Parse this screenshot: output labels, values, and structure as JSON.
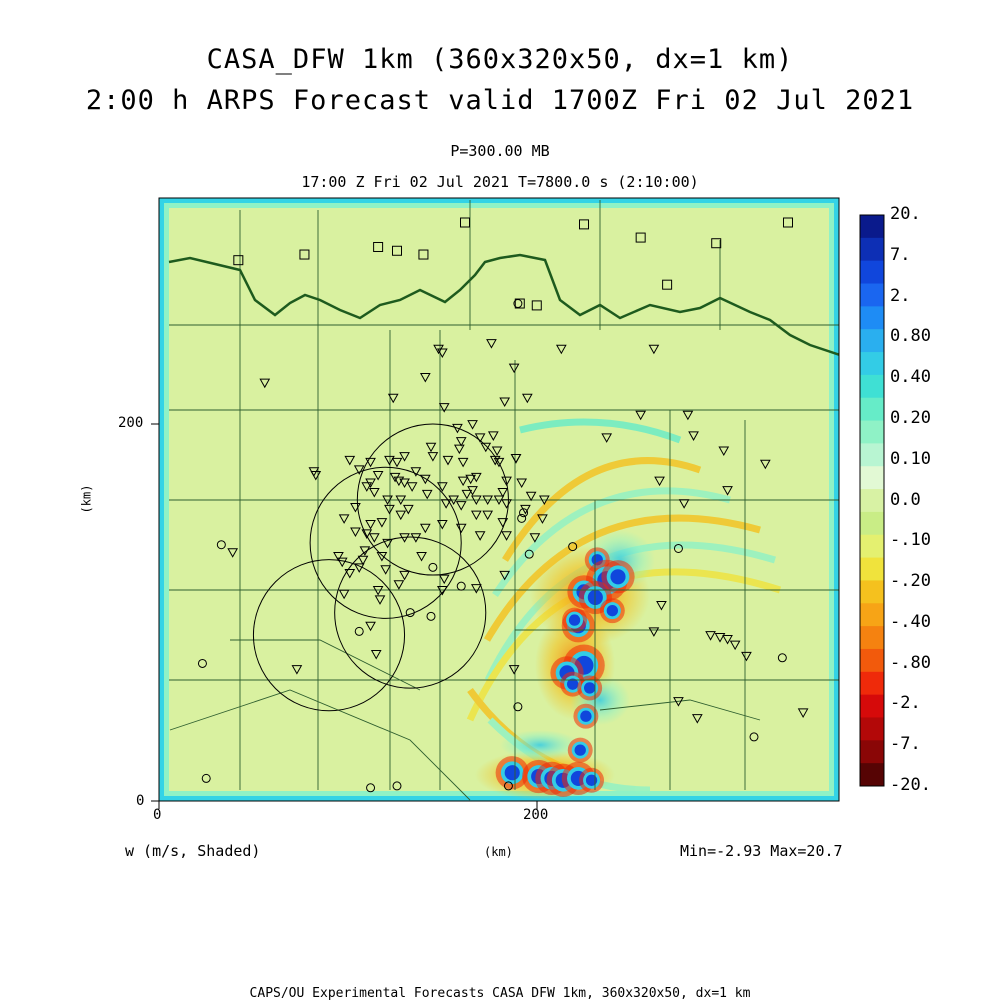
{
  "header": {
    "title_line1": "CASA_DFW 1km (360x320x50, dx=1 km)",
    "title_line2": "2:00 h ARPS Forecast valid 1700Z Fri 02 Jul 2021",
    "level": "P=300.00 MB",
    "time_info": "17:00 Z Fri 02 Jul 2021    T=7800.0 s (2:10:00)"
  },
  "axes": {
    "x_ticks": [
      "0",
      "200"
    ],
    "y_ticks": [
      "0",
      "200"
    ],
    "x_label": "(km)",
    "y_label": "(km)"
  },
  "footer": {
    "field_label": "w (m/s, Shaded)",
    "minmax": "Min=-2.93 Max=20.7",
    "credit": "CAPS/OU Experimental Forecasts  CASA DFW 1km, 360x320x50, dx=1 km"
  },
  "colorbar": {
    "labels": [
      "20.",
      "7.",
      "2.",
      "0.80",
      "0.40",
      "0.20",
      "0.10",
      "0.0",
      "-.10",
      "-.20",
      "-.40",
      "-.80",
      "-2.",
      "-7.",
      "-20."
    ],
    "colors_top_to_bottom": [
      "#0a1a8c",
      "#0d2fb5",
      "#1046dc",
      "#1a66f0",
      "#1e8cf5",
      "#2aafef",
      "#33cce6",
      "#3fe0d4",
      "#66ecc8",
      "#8ff2c6",
      "#b8f5d2",
      "#e2f9d4",
      "#d8f2a4",
      "#c9ed86",
      "#e4f070",
      "#f0e33c",
      "#f5c11e",
      "#f7a416",
      "#f58210",
      "#f25a0c",
      "#ef2a0a",
      "#d60a0a",
      "#b30808",
      "#8a0606",
      "#560404"
    ],
    "field_background": "#d9f1a0",
    "border_color": "#33d3e6"
  },
  "map": {
    "xlim_km": [
      0,
      360
    ],
    "ylim_km": [
      0,
      320
    ],
    "state_border_color": "#1e5b1e",
    "county_line_color": "#2f5f2f",
    "radar_rings_km": [
      {
        "x": 145,
        "y": 160,
        "r": 40
      },
      {
        "x": 120,
        "y": 137,
        "r": 40
      },
      {
        "x": 133,
        "y": 100,
        "r": 40
      },
      {
        "x": 90,
        "y": 88,
        "r": 40
      }
    ],
    "square_sites_km": [
      [
        162,
        307
      ],
      [
        225,
        306
      ],
      [
        255,
        299
      ],
      [
        295,
        296
      ],
      [
        333,
        307
      ],
      [
        116,
        294
      ],
      [
        126,
        292
      ],
      [
        77,
        290
      ],
      [
        42,
        287
      ],
      [
        140,
        290
      ],
      [
        200,
        263
      ],
      [
        191,
        264
      ],
      [
        269,
        274
      ]
    ],
    "circle_sites_km": [
      [
        190,
        264
      ],
      [
        193,
        153
      ],
      [
        33,
        136
      ],
      [
        145,
        124
      ],
      [
        160,
        114
      ],
      [
        144,
        98
      ],
      [
        133,
        100
      ],
      [
        106,
        90
      ],
      [
        196,
        131
      ],
      [
        219,
        135
      ],
      [
        275,
        134
      ],
      [
        330,
        76
      ],
      [
        190,
        50
      ],
      [
        23,
        73
      ],
      [
        25,
        12
      ],
      [
        112,
        7
      ],
      [
        126,
        8
      ],
      [
        185,
        8
      ],
      [
        315,
        34
      ],
      [
        192,
        150
      ]
    ],
    "triangle_sites_km": [
      [
        148,
        240
      ],
      [
        150,
        238
      ],
      [
        141,
        225
      ],
      [
        176,
        243
      ],
      [
        213,
        240
      ],
      [
        188,
        230
      ],
      [
        56,
        222
      ],
      [
        124,
        214
      ],
      [
        151,
        209
      ],
      [
        183,
        212
      ],
      [
        195,
        214
      ],
      [
        262,
        240
      ],
      [
        255,
        205
      ],
      [
        280,
        205
      ],
      [
        237,
        193
      ],
      [
        283,
        194
      ],
      [
        265,
        170
      ],
      [
        321,
        179
      ],
      [
        299,
        186
      ],
      [
        278,
        158
      ],
      [
        301,
        165
      ],
      [
        178,
        181
      ],
      [
        177,
        194
      ],
      [
        158,
        198
      ],
      [
        160,
        191
      ],
      [
        170,
        193
      ],
      [
        166,
        200
      ],
      [
        173,
        188
      ],
      [
        165,
        171
      ],
      [
        159,
        187
      ],
      [
        161,
        180
      ],
      [
        153,
        181
      ],
      [
        144,
        188
      ],
      [
        145,
        183
      ],
      [
        168,
        172
      ],
      [
        180,
        180
      ],
      [
        189,
        182
      ],
      [
        184,
        170
      ],
      [
        161,
        170
      ],
      [
        166,
        165
      ],
      [
        168,
        160
      ],
      [
        174,
        160
      ],
      [
        182,
        164
      ],
      [
        192,
        169
      ],
      [
        184,
        158
      ],
      [
        197,
        162
      ],
      [
        194,
        155
      ],
      [
        150,
        167
      ],
      [
        142,
        163
      ],
      [
        134,
        167
      ],
      [
        141,
        171
      ],
      [
        136,
        175
      ],
      [
        130,
        169
      ],
      [
        125,
        172
      ],
      [
        126,
        180
      ],
      [
        130,
        183
      ],
      [
        122,
        181
      ],
      [
        127,
        170
      ],
      [
        116,
        173
      ],
      [
        112,
        180
      ],
      [
        112,
        169
      ],
      [
        106,
        176
      ],
      [
        101,
        181
      ],
      [
        104,
        156
      ],
      [
        98,
        150
      ],
      [
        104,
        143
      ],
      [
        110,
        142
      ],
      [
        108,
        128
      ],
      [
        109,
        133
      ],
      [
        118,
        130
      ],
      [
        114,
        140
      ],
      [
        121,
        137
      ],
      [
        130,
        140
      ],
      [
        128,
        152
      ],
      [
        132,
        155
      ],
      [
        122,
        155
      ],
      [
        118,
        148
      ],
      [
        112,
        147
      ],
      [
        121,
        160
      ],
      [
        128,
        160
      ],
      [
        136,
        140
      ],
      [
        141,
        145
      ],
      [
        150,
        147
      ],
      [
        160,
        145
      ],
      [
        170,
        141
      ],
      [
        174,
        152
      ],
      [
        182,
        148
      ],
      [
        184,
        141
      ],
      [
        163,
        163
      ],
      [
        152,
        158
      ],
      [
        160,
        157
      ],
      [
        139,
        130
      ],
      [
        151,
        118
      ],
      [
        150,
        112
      ],
      [
        127,
        115
      ],
      [
        117,
        107
      ],
      [
        98,
        110
      ],
      [
        112,
        93
      ],
      [
        115,
        78
      ],
      [
        95,
        130
      ],
      [
        73,
        70
      ],
      [
        183,
        120
      ],
      [
        188,
        70
      ],
      [
        262,
        90
      ],
      [
        292,
        88
      ],
      [
        301,
        86
      ],
      [
        297,
        87
      ],
      [
        305,
        83
      ],
      [
        266,
        104
      ],
      [
        275,
        53
      ],
      [
        341,
        47
      ],
      [
        285,
        44
      ],
      [
        311,
        77
      ],
      [
        39,
        132
      ],
      [
        116,
        112
      ],
      [
        130,
        120
      ],
      [
        120,
        123
      ],
      [
        106,
        124
      ],
      [
        101,
        121
      ],
      [
        97,
        127
      ],
      [
        82,
        175
      ],
      [
        83,
        173
      ],
      [
        110,
        167
      ],
      [
        114,
        164
      ],
      [
        203,
        150
      ],
      [
        204,
        160
      ],
      [
        189,
        182
      ],
      [
        179,
        186
      ],
      [
        180,
        160
      ],
      [
        156,
        160
      ],
      [
        168,
        152
      ],
      [
        199,
        140
      ],
      [
        168,
        113
      ]
    ],
    "convective_cells_km": [
      {
        "x": 232,
        "y": 128,
        "r": 3
      },
      {
        "x": 237,
        "y": 117,
        "r": 5
      },
      {
        "x": 243,
        "y": 119,
        "r": 4
      },
      {
        "x": 225,
        "y": 111,
        "r": 4
      },
      {
        "x": 231,
        "y": 108,
        "r": 4
      },
      {
        "x": 240,
        "y": 101,
        "r": 3
      },
      {
        "x": 222,
        "y": 93,
        "r": 4
      },
      {
        "x": 220,
        "y": 96,
        "r": 3
      },
      {
        "x": 225,
        "y": 72,
        "r": 5
      },
      {
        "x": 216,
        "y": 68,
        "r": 4
      },
      {
        "x": 219,
        "y": 62,
        "r": 3
      },
      {
        "x": 228,
        "y": 60,
        "r": 3
      },
      {
        "x": 226,
        "y": 45,
        "r": 3
      },
      {
        "x": 223,
        "y": 27,
        "r": 3
      },
      {
        "x": 187,
        "y": 15,
        "r": 4
      },
      {
        "x": 201,
        "y": 13,
        "r": 4
      },
      {
        "x": 208,
        "y": 12,
        "r": 4
      },
      {
        "x": 214,
        "y": 11,
        "r": 4
      },
      {
        "x": 222,
        "y": 12,
        "r": 4
      },
      {
        "x": 229,
        "y": 11,
        "r": 3
      }
    ]
  }
}
